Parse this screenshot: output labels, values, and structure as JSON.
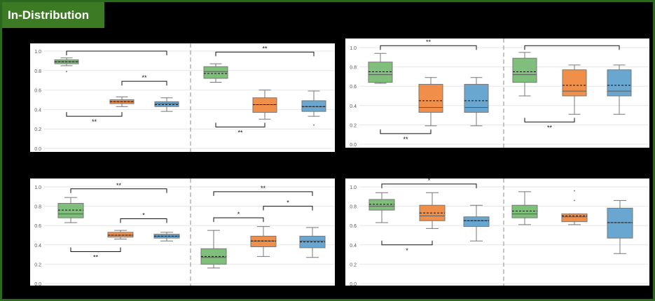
{
  "header": {
    "title": "In-Distribution"
  },
  "colors": {
    "green": "#7fbf7b",
    "orange": "#ef8f4a",
    "blue": "#6aa7d0",
    "frame": "#2b6a1e"
  },
  "chart_data": [
    {
      "type": "box",
      "ylim": [
        0,
        1.0
      ],
      "yticks": [
        "0.0",
        "0.2",
        "0.4",
        "0.6",
        "0.8",
        "1.0"
      ],
      "grid": true,
      "groups": [
        {
          "boxes": [
            {
              "color": "green",
              "whisker_low": 0.85,
              "q1": 0.87,
              "median": 0.89,
              "mean": 0.89,
              "q3": 0.91,
              "whisker_high": 0.93,
              "outliers": [
                0.79
              ]
            },
            {
              "color": "orange",
              "whisker_low": 0.43,
              "q1": 0.46,
              "median": 0.48,
              "mean": 0.48,
              "q3": 0.5,
              "whisker_high": 0.53,
              "outliers": []
            },
            {
              "color": "blue",
              "whisker_low": 0.38,
              "q1": 0.43,
              "median": 0.46,
              "mean": 0.45,
              "q3": 0.48,
              "whisker_high": 0.52,
              "outliers": []
            }
          ],
          "brackets": [
            {
              "from": 0,
              "to": 2,
              "y": 1.0,
              "dir": "down",
              "label": ""
            },
            {
              "from": 1,
              "to": 2,
              "y": 0.69,
              "dir": "down",
              "label": "**"
            },
            {
              "from": 0,
              "to": 1,
              "y": 0.33,
              "dir": "up",
              "label": "**"
            }
          ]
        },
        {
          "boxes": [
            {
              "color": "green",
              "whisker_low": 0.68,
              "q1": 0.72,
              "median": 0.79,
              "mean": 0.77,
              "q3": 0.84,
              "whisker_high": 0.87,
              "outliers": []
            },
            {
              "color": "orange",
              "whisker_low": 0.3,
              "q1": 0.37,
              "median": 0.45,
              "mean": 0.45,
              "q3": 0.52,
              "whisker_high": 0.6,
              "outliers": []
            },
            {
              "color": "blue",
              "whisker_low": 0.33,
              "q1": 0.38,
              "median": 0.43,
              "mean": 0.43,
              "q3": 0.49,
              "whisker_high": 0.59,
              "outliers": [
                0.24
              ]
            }
          ],
          "brackets": [
            {
              "from": 0,
              "to": 2,
              "y": 0.99,
              "dir": "down",
              "label": "**"
            },
            {
              "from": 0,
              "to": 1,
              "y": 0.22,
              "dir": "up",
              "label": "**"
            }
          ]
        }
      ]
    },
    {
      "type": "box",
      "ylim": [
        0,
        1.0
      ],
      "yticks": [
        "0.0",
        "0.2",
        "0.4",
        "0.6",
        "0.8",
        "1.0"
      ],
      "grid": true,
      "groups": [
        {
          "boxes": [
            {
              "color": "green",
              "whisker_low": 0.63,
              "q1": 0.64,
              "median": 0.72,
              "mean": 0.75,
              "q3": 0.85,
              "whisker_high": 0.94,
              "outliers": []
            },
            {
              "color": "orange",
              "whisker_low": 0.19,
              "q1": 0.33,
              "median": 0.38,
              "mean": 0.45,
              "q3": 0.62,
              "whisker_high": 0.69,
              "outliers": []
            },
            {
              "color": "blue",
              "whisker_low": 0.19,
              "q1": 0.33,
              "median": 0.38,
              "mean": 0.45,
              "q3": 0.62,
              "whisker_high": 0.69,
              "outliers": []
            }
          ],
          "brackets": [
            {
              "from": 0,
              "to": 2,
              "y": 1.02,
              "dir": "down",
              "label": "**"
            },
            {
              "from": 0,
              "to": 1,
              "y": 0.11,
              "dir": "up",
              "label": "**"
            }
          ]
        },
        {
          "boxes": [
            {
              "color": "green",
              "whisker_low": 0.5,
              "q1": 0.64,
              "median": 0.72,
              "mean": 0.75,
              "q3": 0.89,
              "whisker_high": 0.95,
              "outliers": []
            },
            {
              "color": "orange",
              "whisker_low": 0.31,
              "q1": 0.5,
              "median": 0.55,
              "mean": 0.61,
              "q3": 0.77,
              "whisker_high": 0.82,
              "outliers": []
            },
            {
              "color": "blue",
              "whisker_low": 0.31,
              "q1": 0.5,
              "median": 0.55,
              "mean": 0.61,
              "q3": 0.77,
              "whisker_high": 0.82,
              "outliers": []
            }
          ],
          "brackets": [
            {
              "from": 0,
              "to": 2,
              "y": 1.02,
              "dir": "down",
              "label": ""
            },
            {
              "from": 0,
              "to": 1,
              "y": 0.23,
              "dir": "up",
              "label": "**"
            }
          ]
        }
      ]
    },
    {
      "type": "box",
      "ylim": [
        0,
        1.0
      ],
      "yticks": [
        "0.0",
        "0.2",
        "0.4",
        "0.6",
        "0.8",
        "1.0"
      ],
      "grid": true,
      "groups": [
        {
          "boxes": [
            {
              "color": "green",
              "whisker_low": 0.63,
              "q1": 0.68,
              "median": 0.72,
              "mean": 0.76,
              "q3": 0.83,
              "whisker_high": 0.89,
              "outliers": []
            },
            {
              "color": "orange",
              "whisker_low": 0.46,
              "q1": 0.48,
              "median": 0.5,
              "mean": 0.5,
              "q3": 0.53,
              "whisker_high": 0.55,
              "outliers": []
            },
            {
              "color": "blue",
              "whisker_low": 0.44,
              "q1": 0.47,
              "median": 0.49,
              "mean": 0.49,
              "q3": 0.51,
              "whisker_high": 0.53,
              "outliers": []
            }
          ],
          "brackets": [
            {
              "from": 0,
              "to": 2,
              "y": 0.98,
              "dir": "down",
              "label": "**"
            },
            {
              "from": 1,
              "to": 2,
              "y": 0.67,
              "dir": "down",
              "label": "*"
            },
            {
              "from": 0,
              "to": 1,
              "y": 0.33,
              "dir": "up",
              "label": "**"
            }
          ]
        },
        {
          "boxes": [
            {
              "color": "green",
              "whisker_low": 0.16,
              "q1": 0.2,
              "median": 0.27,
              "mean": 0.28,
              "q3": 0.36,
              "whisker_high": 0.55,
              "outliers": []
            },
            {
              "color": "orange",
              "whisker_low": 0.28,
              "q1": 0.38,
              "median": 0.44,
              "mean": 0.44,
              "q3": 0.49,
              "whisker_high": 0.59,
              "outliers": []
            },
            {
              "color": "blue",
              "whisker_low": 0.27,
              "q1": 0.37,
              "median": 0.44,
              "mean": 0.43,
              "q3": 0.49,
              "whisker_high": 0.58,
              "outliers": []
            }
          ],
          "brackets": [
            {
              "from": 0,
              "to": 2,
              "y": 0.95,
              "dir": "down",
              "label": "**"
            },
            {
              "from": 0,
              "to": 1,
              "y": 0.68,
              "dir": "down",
              "label": "*"
            },
            {
              "from": 1,
              "to": 2,
              "y": 0.8,
              "dir": "down",
              "label": "*"
            }
          ]
        }
      ]
    },
    {
      "type": "box",
      "ylim": [
        0,
        1.0
      ],
      "yticks": [
        "0.0",
        "0.2",
        "0.4",
        "0.6",
        "0.8",
        "1.0"
      ],
      "grid": true,
      "groups": [
        {
          "boxes": [
            {
              "color": "green",
              "whisker_low": 0.63,
              "q1": 0.76,
              "median": 0.8,
              "mean": 0.82,
              "q3": 0.87,
              "whisker_high": 0.94,
              "outliers": []
            },
            {
              "color": "orange",
              "whisker_low": 0.57,
              "q1": 0.65,
              "median": 0.7,
              "mean": 0.73,
              "q3": 0.81,
              "whisker_high": 0.94,
              "outliers": []
            },
            {
              "color": "blue",
              "whisker_low": 0.44,
              "q1": 0.59,
              "median": 0.65,
              "mean": 0.65,
              "q3": 0.69,
              "whisker_high": 0.81,
              "outliers": []
            }
          ],
          "brackets": [
            {
              "from": 0,
              "to": 2,
              "y": 1.03,
              "dir": "down",
              "label": "*"
            },
            {
              "from": 0,
              "to": 1,
              "y": 0.4,
              "dir": "up",
              "label": "*"
            }
          ]
        },
        {
          "boxes": [
            {
              "color": "green",
              "whisker_low": 0.61,
              "q1": 0.68,
              "median": 0.72,
              "mean": 0.75,
              "q3": 0.81,
              "whisker_high": 0.95,
              "outliers": []
            },
            {
              "color": "orange",
              "whisker_low": 0.61,
              "q1": 0.64,
              "median": 0.69,
              "mean": 0.7,
              "q3": 0.72,
              "whisker_high": 0.72,
              "outliers": [
                0.86,
                0.96
              ]
            },
            {
              "color": "blue",
              "whisker_low": 0.31,
              "q1": 0.47,
              "median": 0.63,
              "mean": 0.63,
              "q3": 0.78,
              "whisker_high": 0.86,
              "outliers": []
            }
          ],
          "brackets": []
        }
      ]
    }
  ]
}
